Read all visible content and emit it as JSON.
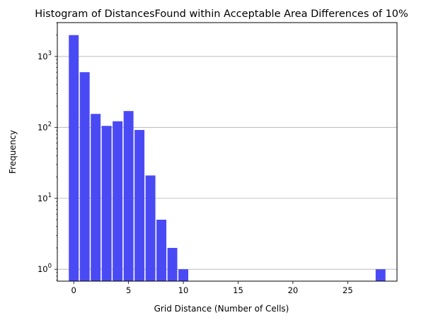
{
  "chart_data": {
    "type": "bar",
    "title": "Histogram of DistancesFound within Acceptable Area Differences of 10%",
    "xlabel": "Grid Distance (Number of Cells)",
    "ylabel": "Frequency",
    "yscale": "log",
    "xlim": [
      -1.5,
      29.5
    ],
    "ylim": [
      0.68,
      3000
    ],
    "x_ticks": [
      0,
      5,
      10,
      15,
      20,
      25
    ],
    "y_ticks": [
      {
        "base": "10",
        "exp": "0"
      },
      {
        "base": "10",
        "exp": "1"
      },
      {
        "base": "10",
        "exp": "2"
      },
      {
        "base": "10",
        "exp": "3"
      }
    ],
    "grid": "y-major",
    "bar_color": "#4a4af5",
    "x": [
      0,
      1,
      2,
      3,
      4,
      5,
      6,
      7,
      8,
      9,
      10,
      28
    ],
    "values": [
      2000,
      600,
      155,
      105,
      122,
      170,
      92,
      21,
      5,
      2,
      1,
      1
    ]
  }
}
